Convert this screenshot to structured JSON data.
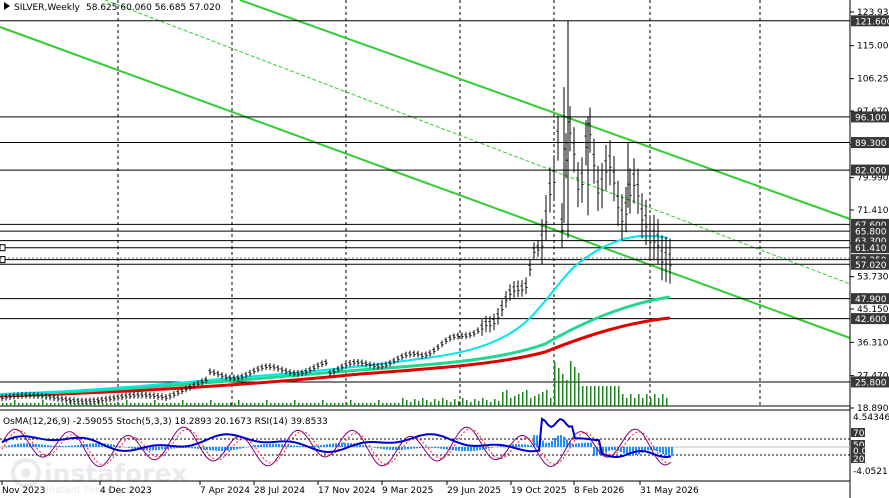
{
  "title": "SILVER,Weekly",
  "ohlc": "58.625 60.060 56.685 57.020",
  "indicator_label": "OsMA(12,26,9) -2.59055  Stoch(5,3,3) 18.2893 20.1673  RSI(14) 39.8533",
  "watermark": {
    "brand": "instaforex",
    "tagline": "Instant Forex Trading"
  },
  "price_labels": [
    {
      "v": 123.93,
      "text": "123.930"
    },
    {
      "v": 115.0,
      "text": "115.000"
    },
    {
      "v": 106.25,
      "text": "106.250"
    },
    {
      "v": 97.67,
      "text": "97.670"
    },
    {
      "v": 88.82,
      "text": "88.820"
    },
    {
      "v": 79.99,
      "text": "79.990"
    },
    {
      "v": 71.41,
      "text": "71.410"
    },
    {
      "v": 62.58,
      "text": "62.580"
    },
    {
      "v": 53.73,
      "text": "53.730"
    },
    {
      "v": 45.15,
      "text": "45.150"
    },
    {
      "v": 36.31,
      "text": "36.310"
    },
    {
      "v": 27.47,
      "text": "27.470"
    },
    {
      "v": 18.89,
      "text": "18.890"
    }
  ],
  "level_tags": [
    {
      "v": 121.6,
      "text": "121.600"
    },
    {
      "v": 96.1,
      "text": "96.100"
    },
    {
      "v": 89.3,
      "text": "89.300"
    },
    {
      "v": 82.0,
      "text": "82.000"
    },
    {
      "v": 67.6,
      "text": "67.600"
    },
    {
      "v": 65.8,
      "text": "65.800"
    },
    {
      "v": 63.3,
      "text": "63.300"
    },
    {
      "v": 61.41,
      "text": "61.410"
    },
    {
      "v": 58.25,
      "text": "58.250"
    },
    {
      "v": 57.02,
      "text": "57.020"
    },
    {
      "v": 47.9,
      "text": "47.900"
    },
    {
      "v": 42.6,
      "text": "42.600"
    },
    {
      "v": 25.8,
      "text": "25.800"
    }
  ],
  "indicator_scale": [
    "4.54346",
    "70",
    "50",
    "30",
    "20",
    "0.00",
    "-4.0521"
  ],
  "dates": [
    "Nov 2023",
    "4 Dec 2023",
    "7 Apr 2024",
    "28 Jul 2024",
    "17 Nov 2024",
    "9 Mar 2025",
    "29 Jun 2025",
    "19 Oct 2025",
    "8 Feb 2026",
    "31 May 2026"
  ],
  "colors": {
    "channel": "#32cd32",
    "ma_cyan": "#00e5ee",
    "ma_green": "#20d890",
    "ma_red": "#e00000",
    "tag_bg": "#383838",
    "osma": "#1e90ff",
    "rsi": "#0000cd",
    "stoch": "#800080"
  }
}
